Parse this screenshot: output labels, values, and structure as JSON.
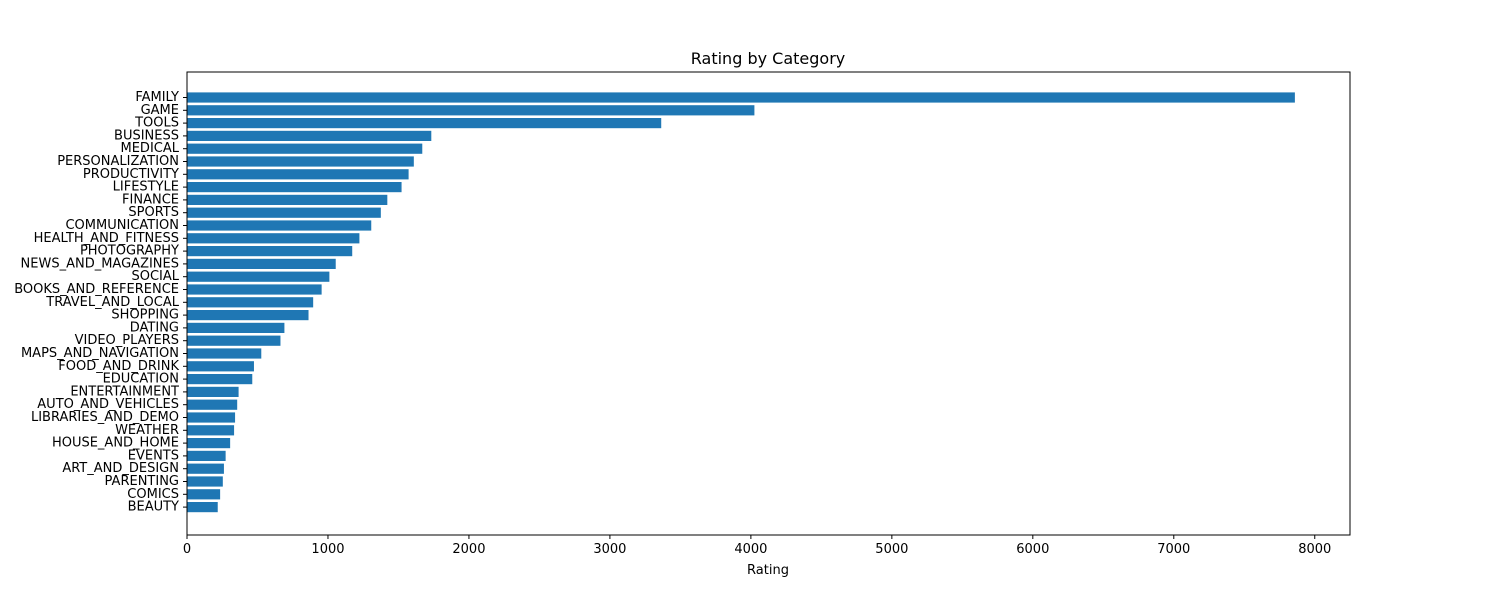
{
  "chart_data": {
    "type": "bar",
    "orientation": "horizontal",
    "title": "Rating by Category",
    "xlabel": "Rating",
    "ylabel": "",
    "xlim": [
      0,
      8250
    ],
    "xticks": [
      0,
      1000,
      2000,
      3000,
      4000,
      5000,
      6000,
      7000,
      8000
    ],
    "grid": false,
    "bar_color": "#1f77b4",
    "categories": [
      "FAMILY",
      "GAME",
      "TOOLS",
      "BUSINESS",
      "MEDICAL",
      "PERSONALIZATION",
      "PRODUCTIVITY",
      "LIFESTYLE",
      "FINANCE",
      "SPORTS",
      "COMMUNICATION",
      "HEALTH_AND_FITNESS",
      "PHOTOGRAPHY",
      "NEWS_AND_MAGAZINES",
      "SOCIAL",
      "BOOKS_AND_REFERENCE",
      "TRAVEL_AND_LOCAL",
      "SHOPPING",
      "DATING",
      "VIDEO_PLAYERS",
      "MAPS_AND_NAVIGATION",
      "FOOD_AND_DRINK",
      "EDUCATION",
      "ENTERTAINMENT",
      "AUTO_AND_VEHICLES",
      "LIBRARIES_AND_DEMO",
      "WEATHER",
      "HOUSE_AND_HOME",
      "EVENTS",
      "ART_AND_DESIGN",
      "PARENTING",
      "COMICS",
      "BEAUTY"
    ],
    "values": [
      7859,
      4025,
      3364,
      1733,
      1669,
      1609,
      1572,
      1522,
      1421,
      1375,
      1307,
      1223,
      1172,
      1055,
      1010,
      955,
      895,
      862,
      691,
      663,
      527,
      475,
      463,
      366,
      356,
      341,
      334,
      306,
      274,
      262,
      254,
      235,
      218
    ]
  }
}
